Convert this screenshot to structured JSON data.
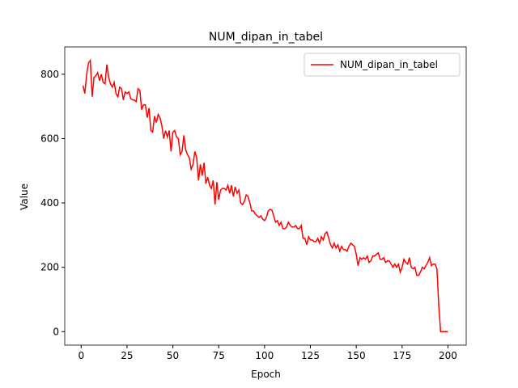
{
  "chart_data": {
    "type": "line",
    "title": "NUM_dipan_in_tabel",
    "xlabel": "Epoch",
    "ylabel": "Value",
    "x": [
      1,
      2,
      3,
      4,
      5,
      6,
      7,
      8,
      9,
      10,
      11,
      12,
      13,
      14,
      15,
      16,
      17,
      18,
      19,
      20,
      21,
      22,
      23,
      24,
      25,
      26,
      27,
      28,
      29,
      30,
      31,
      32,
      33,
      34,
      35,
      36,
      37,
      38,
      39,
      40,
      41,
      42,
      43,
      44,
      45,
      46,
      47,
      48,
      49,
      50,
      51,
      52,
      53,
      54,
      55,
      56,
      57,
      58,
      59,
      60,
      61,
      62,
      63,
      64,
      65,
      66,
      67,
      68,
      69,
      70,
      71,
      72,
      73,
      74,
      75,
      76,
      77,
      78,
      79,
      80,
      81,
      82,
      83,
      84,
      85,
      86,
      87,
      88,
      89,
      90,
      91,
      92,
      93,
      94,
      95,
      96,
      97,
      98,
      99,
      100,
      101,
      102,
      103,
      104,
      105,
      106,
      107,
      108,
      109,
      110,
      111,
      112,
      113,
      114,
      115,
      116,
      117,
      118,
      119,
      120,
      121,
      122,
      123,
      124,
      125,
      126,
      127,
      128,
      129,
      130,
      131,
      132,
      133,
      134,
      135,
      136,
      137,
      138,
      139,
      140,
      141,
      142,
      143,
      144,
      145,
      146,
      147,
      148,
      149,
      150,
      151,
      152,
      153,
      154,
      155,
      156,
      157,
      158,
      159,
      160,
      161,
      162,
      163,
      164,
      165,
      166,
      167,
      168,
      169,
      170,
      171,
      172,
      173,
      174,
      175,
      176,
      177,
      178,
      179,
      180,
      181,
      182,
      183,
      184,
      185,
      186,
      187,
      188,
      189,
      190,
      191,
      192,
      193,
      194,
      195,
      196,
      197,
      198,
      199,
      200
    ],
    "series": [
      {
        "name": "NUM_dipan_in_tabel",
        "color": "#ff0000",
        "values": [
          765,
          740,
          800,
          835,
          843,
          730,
          790,
          795,
          805,
          780,
          800,
          775,
          770,
          830,
          790,
          770,
          760,
          775,
          740,
          730,
          760,
          755,
          720,
          745,
          740,
          745,
          725,
          720,
          720,
          715,
          755,
          750,
          690,
          705,
          705,
          665,
          695,
          625,
          620,
          670,
          650,
          675,
          665,
          640,
          600,
          625,
          605,
          625,
          560,
          620,
          625,
          605,
          600,
          550,
          560,
          610,
          565,
          550,
          540,
          505,
          520,
          560,
          540,
          470,
          520,
          485,
          525,
          460,
          480,
          455,
          445,
          470,
          395,
          465,
          410,
          440,
          445,
          445,
          440,
          455,
          430,
          455,
          420,
          450,
          430,
          440,
          400,
          395,
          405,
          425,
          420,
          400,
          375,
          375,
          365,
          360,
          355,
          360,
          350,
          345,
          355,
          375,
          380,
          378,
          360,
          340,
          345,
          330,
          340,
          320,
          320,
          325,
          340,
          330,
          325,
          325,
          330,
          320,
          320,
          330,
          290,
          290,
          270,
          295,
          285,
          285,
          280,
          280,
          290,
          275,
          295,
          285,
          305,
          310,
          290,
          270,
          260,
          275,
          260,
          270,
          250,
          265,
          255,
          255,
          250,
          265,
          275,
          270,
          265,
          240,
          205,
          230,
          225,
          230,
          225,
          235,
          215,
          220,
          235,
          235,
          240,
          245,
          225,
          225,
          230,
          215,
          220,
          220,
          210,
          200,
          210,
          200,
          210,
          185,
          200,
          225,
          215,
          210,
          230,
          200,
          195,
          200,
          175,
          175,
          185,
          200,
          195,
          205,
          215,
          230,
          205,
          210,
          210,
          195,
          80,
          0,
          0,
          0,
          0,
          0
        ]
      }
    ],
    "xlim": [
      -8.95,
      209.95
    ],
    "ylim": [
      -42,
      885
    ],
    "xticks": [
      0,
      25,
      50,
      75,
      100,
      125,
      150,
      175,
      200
    ],
    "yticks": [
      0,
      200,
      400,
      600,
      800
    ],
    "grid": false,
    "legend": "upper right"
  }
}
